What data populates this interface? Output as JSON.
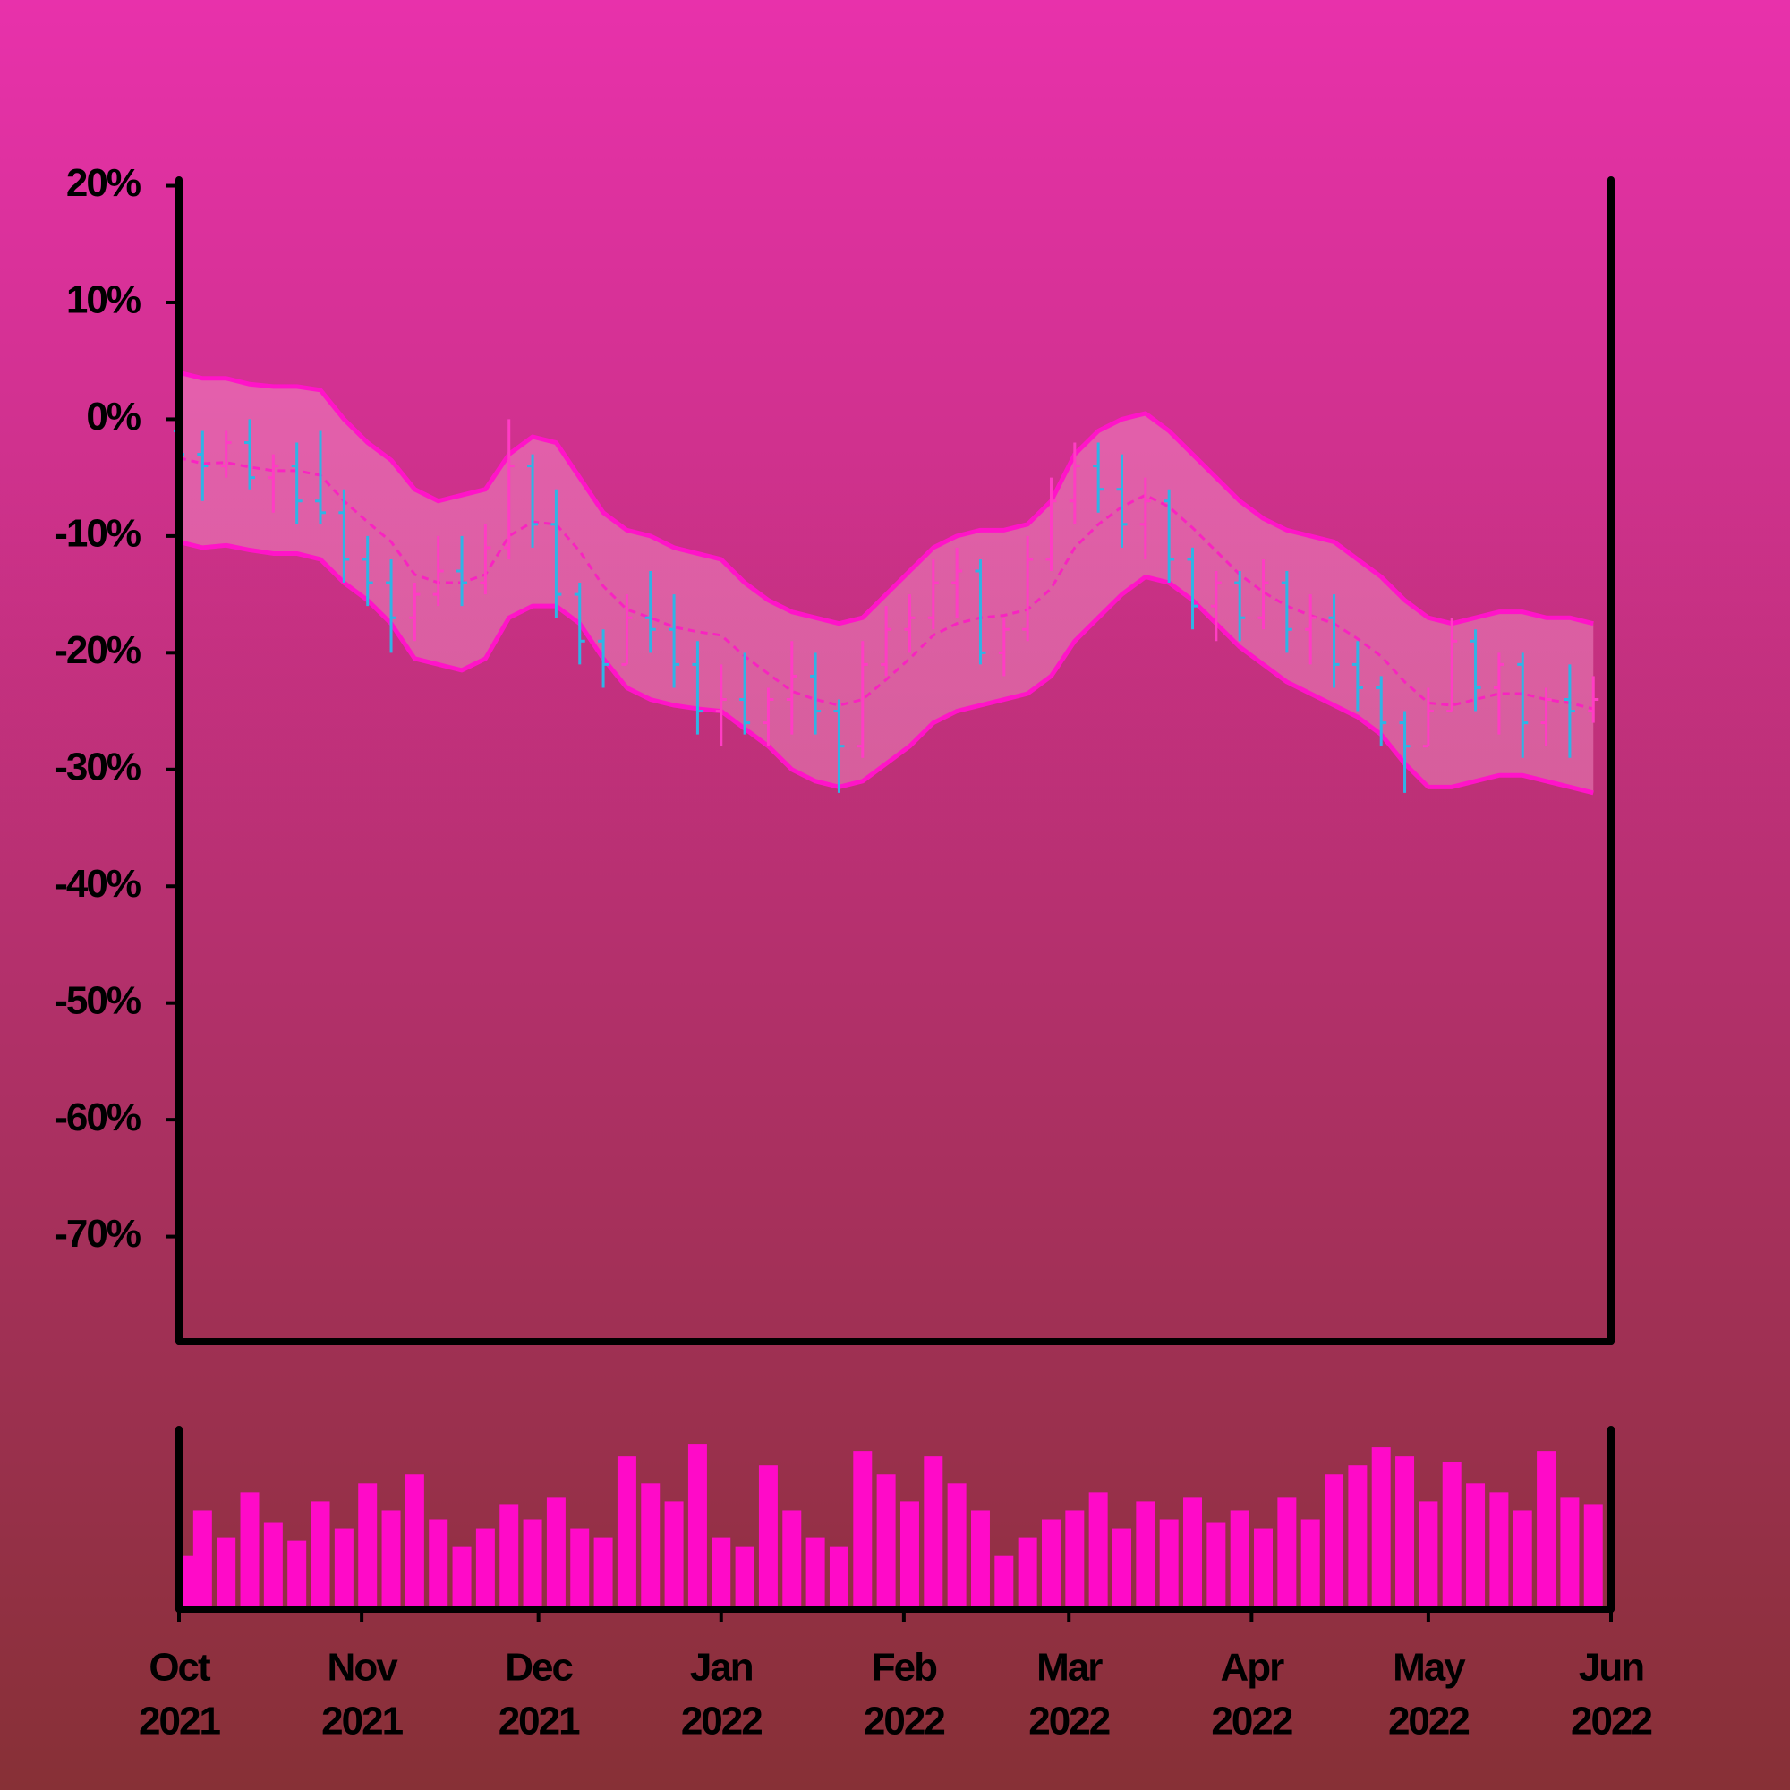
{
  "chart_data": {
    "type": "ohlc",
    "x": [
      "2021-10-01",
      "2021-10-05",
      "2021-10-09",
      "2021-10-13",
      "2021-10-17",
      "2021-10-21",
      "2021-10-25",
      "2021-10-29",
      "2021-11-02",
      "2021-11-06",
      "2021-11-10",
      "2021-11-14",
      "2021-11-18",
      "2021-11-22",
      "2021-11-26",
      "2021-11-30",
      "2021-12-04",
      "2021-12-08",
      "2021-12-12",
      "2021-12-16",
      "2021-12-20",
      "2021-12-24",
      "2021-12-28",
      "2022-01-01",
      "2022-01-05",
      "2022-01-09",
      "2022-01-13",
      "2022-01-17",
      "2022-01-21",
      "2022-01-25",
      "2022-01-29",
      "2022-02-02",
      "2022-02-06",
      "2022-02-10",
      "2022-02-14",
      "2022-02-18",
      "2022-02-22",
      "2022-02-26",
      "2022-03-02",
      "2022-03-06",
      "2022-03-10",
      "2022-03-14",
      "2022-03-18",
      "2022-03-22",
      "2022-03-26",
      "2022-03-30",
      "2022-04-03",
      "2022-04-07",
      "2022-04-11",
      "2022-04-15",
      "2022-04-19",
      "2022-04-23",
      "2022-04-27",
      "2022-05-01",
      "2022-05-05",
      "2022-05-09",
      "2022-05-13",
      "2022-05-17",
      "2022-05-21",
      "2022-05-25",
      "2022-05-29"
    ],
    "open": [
      -1,
      -3,
      -4,
      -2,
      -5,
      -4,
      -7,
      -8,
      -12,
      -14,
      -17,
      -15,
      -13,
      -14,
      -11,
      -4,
      -9,
      -15,
      -19,
      -21,
      -17,
      -18,
      -21,
      -25,
      -24,
      -26,
      -24,
      -22,
      -25,
      -28,
      -21,
      -18,
      -17,
      -14,
      -13,
      -20,
      -18,
      -12,
      -7,
      -4,
      -6,
      -9,
      -7,
      -12,
      -16,
      -14,
      -17,
      -14,
      -18,
      -17,
      -21,
      -23,
      -26,
      -28,
      -25,
      -19,
      -23,
      -21,
      -26,
      -24,
      -25
    ],
    "high": [
      0,
      -1,
      -1,
      0,
      -3,
      -2,
      -1,
      -6,
      -10,
      -12,
      -14,
      -10,
      -10,
      -9,
      0,
      -3,
      -6,
      -14,
      -18,
      -15,
      -13,
      -15,
      -19,
      -21,
      -20,
      -23,
      -19,
      -20,
      -24,
      -19,
      -16,
      -15,
      -12,
      -11,
      -12,
      -17,
      -10,
      -5,
      -2,
      -2,
      -3,
      -5,
      -6,
      -11,
      -13,
      -13,
      -12,
      -13,
      -15,
      -15,
      -19,
      -22,
      -25,
      -23,
      -17,
      -18,
      -20,
      -20,
      -23,
      -21,
      -22
    ],
    "low": [
      -5,
      -7,
      -5,
      -6,
      -8,
      -9,
      -9,
      -14,
      -16,
      -20,
      -19,
      -16,
      -16,
      -15,
      -12,
      -11,
      -17,
      -21,
      -23,
      -21,
      -20,
      -23,
      -27,
      -28,
      -27,
      -28,
      -27,
      -27,
      -32,
      -29,
      -22,
      -20,
      -18,
      -17,
      -21,
      -22,
      -19,
      -13,
      -9,
      -8,
      -11,
      -12,
      -14,
      -18,
      -19,
      -19,
      -18,
      -20,
      -21,
      -23,
      -25,
      -28,
      -32,
      -28,
      -25,
      -25,
      -27,
      -29,
      -28,
      -29,
      -26
    ],
    "close": [
      -3,
      -4,
      -2,
      -5,
      -4,
      -7,
      -8,
      -12,
      -14,
      -17,
      -15,
      -13,
      -14,
      -11,
      -4,
      -9,
      -15,
      -19,
      -21,
      -17,
      -18,
      -21,
      -25,
      -24,
      -26,
      -24,
      -22,
      -25,
      -28,
      -21,
      -18,
      -17,
      -14,
      -13,
      -20,
      -18,
      -12,
      -7,
      -4,
      -6,
      -9,
      -7,
      -12,
      -16,
      -14,
      -17,
      -14,
      -18,
      -17,
      -21,
      -23,
      -26,
      -28,
      -25,
      -19,
      -23,
      -21,
      -26,
      -24,
      -25,
      -24
    ],
    "band_upper": [
      4,
      3.5,
      3.5,
      3,
      2.8,
      2.8,
      2.5,
      0,
      -2,
      -3.5,
      -6,
      -7,
      -6.5,
      -6,
      -3,
      -1.5,
      -2,
      -5,
      -8,
      -9.5,
      -10,
      -11,
      -11.5,
      -12,
      -14,
      -15.5,
      -16.5,
      -17,
      -17.5,
      -17,
      -15,
      -13,
      -11,
      -10,
      -9.5,
      -9.5,
      -9,
      -7,
      -3,
      -1,
      0,
      0.5,
      -1,
      -3,
      -5,
      -7,
      -8.5,
      -9.5,
      -10,
      -10.5,
      -12,
      -13.5,
      -15.5,
      -17,
      -17.5,
      -17,
      -16.5,
      -16.5,
      -17,
      -17,
      -17.5
    ],
    "band_lower": [
      -10.5,
      -11,
      -10.8,
      -11.2,
      -11.5,
      -11.5,
      -12,
      -14,
      -15.5,
      -17.5,
      -20.5,
      -21,
      -21.5,
      -20.5,
      -17,
      -16,
      -16,
      -17.5,
      -20.5,
      -23,
      -24,
      -24.5,
      -24.8,
      -25,
      -26.5,
      -28,
      -30,
      -31,
      -31.5,
      -31,
      -29.5,
      -28,
      -26,
      -25,
      -24.5,
      -24,
      -23.5,
      -22,
      -19,
      -17,
      -15,
      -13.5,
      -14,
      -15.5,
      -17.5,
      -19.5,
      -21,
      -22.5,
      -23.5,
      -24.5,
      -25.5,
      -27,
      -29.5,
      -31.5,
      -31.5,
      -31,
      -30.5,
      -30.5,
      -31,
      -31.5,
      -32
    ],
    "moving_average": [
      -3.3,
      -3.8,
      -3.7,
      -4.1,
      -4.4,
      -4.4,
      -4.8,
      -7,
      -8.8,
      -10.5,
      -13.3,
      -14,
      -14,
      -13.3,
      -10,
      -8.8,
      -9,
      -11.3,
      -14.3,
      -16.3,
      -17,
      -17.8,
      -18.2,
      -18.5,
      -20.3,
      -21.8,
      -23.3,
      -24,
      -24.5,
      -24,
      -22.3,
      -20.5,
      -18.5,
      -17.5,
      -17,
      -16.8,
      -16.3,
      -14.5,
      -11,
      -9,
      -7.5,
      -6.5,
      -7.5,
      -9.3,
      -11.3,
      -13.3,
      -14.8,
      -16,
      -16.8,
      -17.5,
      -18.8,
      -20.3,
      -22.5,
      -24.3,
      -24.5,
      -24,
      -23.5,
      -23.5,
      -24,
      -24.3,
      -24.8
    ],
    "volume": [
      30,
      55,
      40,
      65,
      48,
      38,
      60,
      45,
      70,
      55,
      75,
      50,
      35,
      45,
      58,
      50,
      62,
      45,
      40,
      85,
      70,
      60,
      92,
      40,
      35,
      80,
      55,
      40,
      35,
      88,
      75,
      60,
      85,
      70,
      55,
      30,
      40,
      50,
      55,
      65,
      45,
      60,
      50,
      62,
      48,
      55,
      45,
      62,
      50,
      75,
      80,
      90,
      85,
      60,
      82,
      70,
      65,
      55,
      88,
      62,
      58
    ],
    "volume_lim": [
      0,
      100
    ],
    "xlim": [
      "2021-10-01",
      "2022-06-01"
    ],
    "xticks": [
      {
        "value": "2021-10-01",
        "label": [
          "Oct",
          "2021"
        ]
      },
      {
        "value": "2021-11-01",
        "label": [
          "Nov",
          "2021"
        ]
      },
      {
        "value": "2021-12-01",
        "label": [
          "Dec",
          "2021"
        ]
      },
      {
        "value": "2022-01-01",
        "label": [
          "Jan",
          "2022"
        ]
      },
      {
        "value": "2022-02-01",
        "label": [
          "Feb",
          "2022"
        ]
      },
      {
        "value": "2022-03-01",
        "label": [
          "Mar",
          "2022"
        ]
      },
      {
        "value": "2022-04-01",
        "label": [
          "Apr",
          "2022"
        ]
      },
      {
        "value": "2022-05-01",
        "label": [
          "May",
          "2022"
        ]
      },
      {
        "value": "2022-06-01",
        "label": [
          "Jun",
          "2022"
        ]
      }
    ],
    "ylim": [
      -79,
      20.5
    ],
    "yticks": [
      {
        "value": 20,
        "label": "20%"
      },
      {
        "value": 10,
        "label": "10%"
      },
      {
        "value": 0,
        "label": "0%"
      },
      {
        "value": -10,
        "label": "-10%"
      },
      {
        "value": -20,
        "label": "-20%"
      },
      {
        "value": -30,
        "label": "-30%"
      },
      {
        "value": -40,
        "label": "-40%"
      },
      {
        "value": -50,
        "label": "-50%"
      },
      {
        "value": -60,
        "label": "-60%"
      },
      {
        "value": -70,
        "label": "-70%"
      }
    ],
    "up_color": "#ff3cc4",
    "down_color": "#2fb4e6",
    "band_color": "#ff14c8",
    "volume_color": "#ff0ac8"
  }
}
